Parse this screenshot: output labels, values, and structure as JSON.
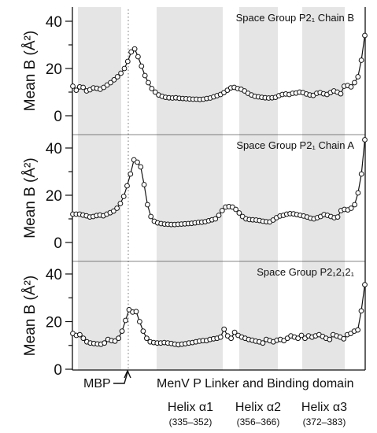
{
  "chart_data": [
    {
      "type": "line",
      "title": "Space Group P2₁ Chain B",
      "ylabel": "Mean B (Å²)",
      "ylim": [
        0,
        44
      ],
      "yticks": [
        0,
        20,
        40
      ],
      "grid": false,
      "values": [
        12.5,
        10.8,
        12.2,
        12.0,
        10.5,
        11.0,
        11.8,
        11.6,
        11.2,
        12.0,
        13.0,
        14.0,
        15.2,
        16.5,
        18.0,
        20.0,
        23.0,
        27.0,
        28.3,
        25.0,
        21.0,
        17.0,
        14.0,
        11.5,
        10.0,
        8.8,
        8.2,
        7.8,
        7.6,
        7.5,
        7.6,
        7.4,
        7.3,
        7.2,
        7.1,
        7.0,
        7.0,
        6.9,
        7.0,
        7.3,
        7.5,
        8.0,
        8.5,
        9.0,
        9.8,
        10.8,
        11.8,
        12.0,
        11.5,
        11.2,
        10.5,
        9.5,
        8.8,
        8.2,
        8.0,
        7.8,
        7.6,
        7.5,
        7.6,
        7.8,
        8.5,
        9.0,
        9.2,
        9.0,
        9.5,
        9.6,
        10.0,
        9.8,
        9.2,
        8.8,
        8.6,
        9.5,
        9.8,
        9.3,
        9.0,
        9.8,
        10.5,
        10.0,
        9.3,
        12.5,
        12.8,
        12.2,
        14.0,
        16.5,
        23.5,
        34.0
      ]
    },
    {
      "type": "line",
      "title": "Space Group P2₁ Chain A",
      "ylabel": "Mean B (Å²)",
      "ylim": [
        0,
        44
      ],
      "yticks": [
        0,
        20,
        40
      ],
      "grid": false,
      "values": [
        12.0,
        12.0,
        12.0,
        11.6,
        11.3,
        10.8,
        11.0,
        11.4,
        11.6,
        11.3,
        12.0,
        12.6,
        13.3,
        14.5,
        16.5,
        19.5,
        24.0,
        29.0,
        35.0,
        34.0,
        32.0,
        24.5,
        16.0,
        11.0,
        9.0,
        8.3,
        8.0,
        7.8,
        7.7,
        7.6,
        7.6,
        7.7,
        7.8,
        7.9,
        8.0,
        8.1,
        8.3,
        8.5,
        8.6,
        8.8,
        9.2,
        9.6,
        10.0,
        11.5,
        13.5,
        15.0,
        15.2,
        15.0,
        14.0,
        12.5,
        11.0,
        10.0,
        9.7,
        9.6,
        9.5,
        9.3,
        9.0,
        8.8,
        8.7,
        9.5,
        10.5,
        11.2,
        11.5,
        12.0,
        12.2,
        12.1,
        11.8,
        11.5,
        11.2,
        10.8,
        10.3,
        10.0,
        10.5,
        11.0,
        11.8,
        11.5,
        11.0,
        10.5,
        10.8,
        13.5,
        14.0,
        13.8,
        14.5,
        16.0,
        21.0,
        29.0,
        43.5
      ]
    },
    {
      "type": "line",
      "title": "Space Group P2₁2₁2₁",
      "ylabel": "Mean B (Å²)",
      "ylim": [
        0,
        44
      ],
      "yticks": [
        0,
        20,
        40
      ],
      "grid": false,
      "values": [
        15.0,
        14.2,
        14.5,
        13.0,
        11.5,
        11.0,
        10.8,
        10.6,
        10.5,
        11.0,
        12.5,
        12.0,
        11.8,
        13.0,
        16.0,
        20.5,
        25.0,
        24.0,
        24.2,
        20.0,
        16.0,
        13.0,
        11.5,
        11.2,
        11.0,
        11.0,
        11.2,
        11.0,
        10.8,
        10.5,
        10.3,
        10.5,
        10.7,
        11.0,
        11.2,
        11.5,
        11.8,
        12.0,
        12.0,
        12.5,
        12.8,
        13.0,
        13.5,
        16.8,
        14.0,
        13.0,
        15.5,
        14.2,
        13.5,
        13.0,
        12.5,
        12.2,
        11.8,
        11.5,
        11.0,
        12.5,
        12.0,
        11.5,
        12.2,
        12.5,
        12.0,
        13.0,
        14.0,
        13.5,
        13.0,
        14.2,
        13.0,
        14.0,
        13.5,
        14.0,
        14.5,
        13.8,
        13.0,
        12.5,
        14.5,
        14.0,
        13.5,
        12.8,
        14.5,
        15.0,
        16.0,
        16.5,
        24.5,
        35.5
      ]
    }
  ],
  "shaded_regions": [
    "MBP",
    "Helix α1",
    "Helix α2",
    "Helix α3"
  ],
  "annotations": {
    "mbp_label": "MBP",
    "domain_label": "MenV P Linker and Binding domain",
    "helix1_name": "Helix α1",
    "helix1_range": "(335–352)",
    "helix2_name": "Helix α2",
    "helix2_range": "(356–366)",
    "helix3_name": "Helix α3",
    "helix3_range": "(372–383)"
  },
  "colors": {
    "shade": "#e5e5e5",
    "line": "#111111",
    "marker_fill": "#ffffff",
    "dotted": "#888888"
  }
}
